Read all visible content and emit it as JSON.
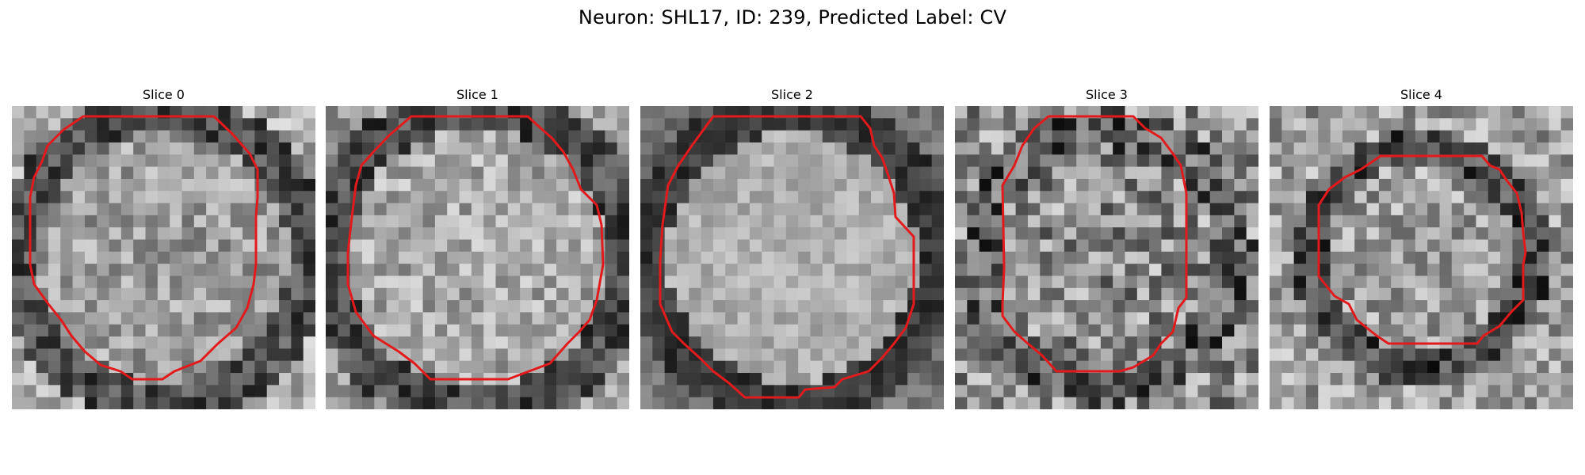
{
  "figure": {
    "title": "Neuron: SHL17, ID: 239, Predicted Label: CV",
    "outline_color": "#e31a1c"
  },
  "panels": [
    {
      "title": "Slice 0"
    },
    {
      "title": "Slice 1"
    },
    {
      "title": "Slice 2"
    },
    {
      "title": "Slice 3"
    },
    {
      "title": "Slice 4"
    }
  ]
}
